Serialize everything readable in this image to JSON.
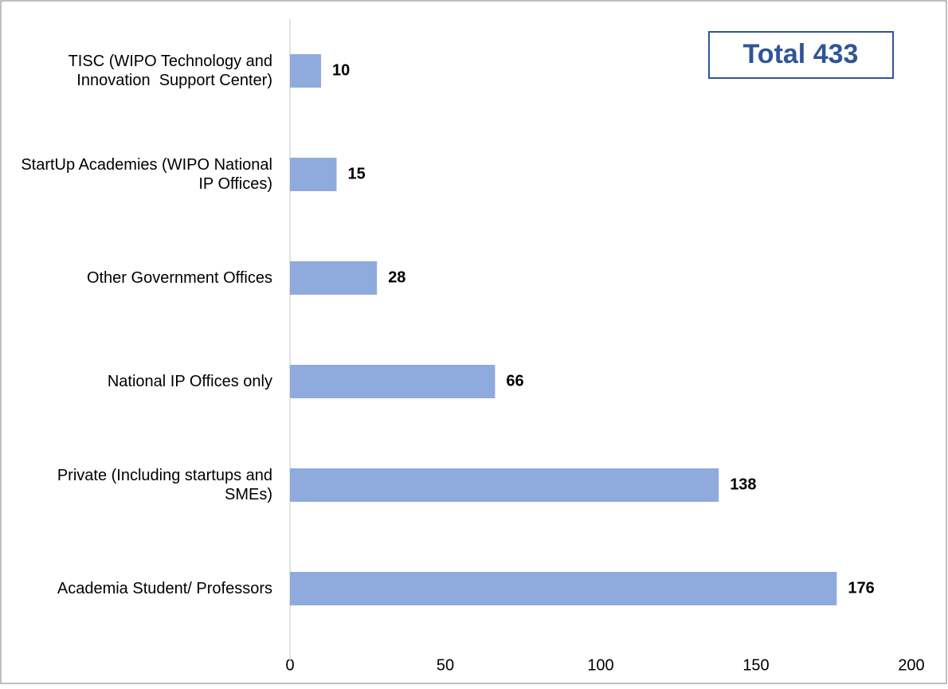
{
  "chart_data": {
    "type": "bar",
    "orientation": "horizontal",
    "annotation": "Total 433",
    "categories": [
      "TISC (WIPO Technology and Innovation  Support Center)",
      "StartUp Academies (WIPO National IP Offices)",
      "Other Government Offices",
      "National IP Offices only",
      "Private (Including startups and SMEs)",
      "Academia Student/ Professors"
    ],
    "values": [
      10,
      15,
      28,
      66,
      138,
      176
    ],
    "color": "#8faadc",
    "xlim": [
      0,
      200
    ],
    "xticks": [
      0,
      50,
      100,
      150,
      200
    ],
    "grid": false
  }
}
